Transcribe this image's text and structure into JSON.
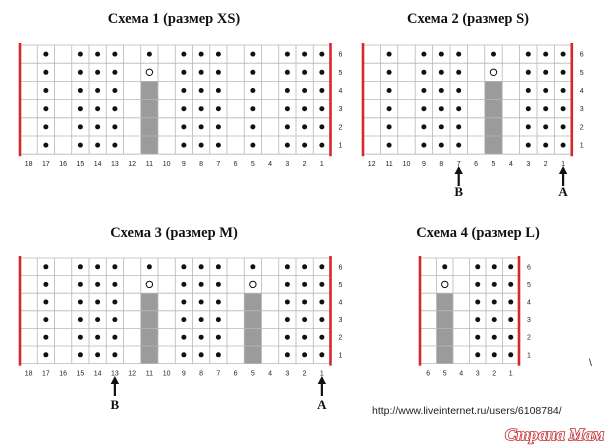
{
  "diagrams": [
    {
      "title": "Схема 1 (размер XS)",
      "columns": [
        "18",
        "17",
        "16",
        "15",
        "14",
        "13",
        "12",
        "11",
        "10",
        "9",
        "8",
        "7",
        "6",
        "5",
        "4",
        "3",
        "2",
        "1"
      ],
      "rows": [
        "6",
        "5",
        "4",
        "3",
        "2",
        "1"
      ],
      "dot_columns": [
        "17",
        "15",
        "14",
        "13",
        "11",
        "9",
        "8",
        "7",
        "5",
        "3",
        "2",
        "1"
      ],
      "purl_rows_5": [
        "17",
        "15",
        "14",
        "13",
        "9",
        "8",
        "7",
        "5",
        "3",
        "2",
        "1"
      ],
      "yarn_over_row": "5",
      "yarn_over_column": "11",
      "gray_column": "11",
      "gray_rows": [
        "4",
        "3",
        "2",
        "1"
      ],
      "arrows": []
    },
    {
      "title": "Схема 2 (размер S)",
      "columns": [
        "12",
        "11",
        "10",
        "9",
        "8",
        "7",
        "6",
        "5",
        "4",
        "3",
        "2",
        "1"
      ],
      "rows": [
        "6",
        "5",
        "4",
        "3",
        "2",
        "1"
      ],
      "dot_columns": [
        "11",
        "9",
        "8",
        "7",
        "5",
        "3",
        "2",
        "1"
      ],
      "purl_rows_5": [
        "11",
        "9",
        "8",
        "7",
        "3",
        "2",
        "1"
      ],
      "yarn_over_row": "5",
      "yarn_over_column": "5",
      "gray_column": "5",
      "gray_rows": [
        "4",
        "3",
        "2",
        "1"
      ],
      "arrows": [
        {
          "label": "В",
          "column": "7"
        },
        {
          "label": "А",
          "column": "1"
        }
      ]
    },
    {
      "title": "Схема 3 (размер M)",
      "columns": [
        "18",
        "17",
        "16",
        "15",
        "14",
        "13",
        "12",
        "11",
        "10",
        "9",
        "8",
        "7",
        "6",
        "5",
        "4",
        "3",
        "2",
        "1"
      ],
      "rows": [
        "6",
        "5",
        "4",
        "3",
        "2",
        "1"
      ],
      "dot_columns": [
        "17",
        "15",
        "14",
        "13",
        "11",
        "9",
        "8",
        "7",
        "5",
        "3",
        "2",
        "1"
      ],
      "purl_rows_5": [
        "17",
        "15",
        "14",
        "13",
        "9",
        "8",
        "7",
        "3",
        "2",
        "1"
      ],
      "yarn_over_row": "5",
      "yarn_over_column": "11,5",
      "gray_column": "11,5",
      "gray_rows": [
        "4",
        "3",
        "2",
        "1"
      ],
      "arrows": [
        {
          "label": "В",
          "column": "13"
        },
        {
          "label": "А",
          "column": "1"
        }
      ]
    },
    {
      "title": "Схема 4 (размер L)",
      "columns": [
        "6",
        "5",
        "4",
        "3",
        "2",
        "1"
      ],
      "rows": [
        "6",
        "5",
        "4",
        "3",
        "2",
        "1"
      ],
      "dot_columns": [
        "5",
        "3",
        "2",
        "1"
      ],
      "purl_rows_5": [
        "3",
        "2",
        "1"
      ],
      "yarn_over_row": "5",
      "yarn_over_column": "5",
      "gray_column": "5",
      "gray_rows": [
        "4",
        "3",
        "2",
        "1"
      ],
      "arrows": []
    }
  ],
  "footer": {
    "url": "http://www.liveinternet.ru/users/6108784/",
    "watermark": "Страна Мам",
    "stray_mark": "\\"
  }
}
